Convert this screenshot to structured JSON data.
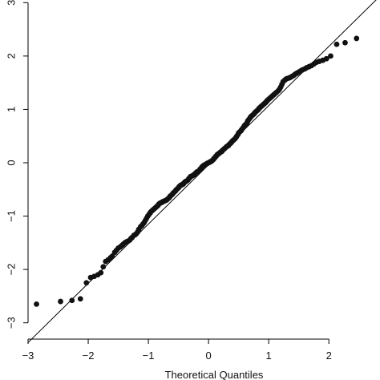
{
  "chart_data": {
    "type": "scatter",
    "title": "",
    "xlabel": "Theoretical Quantiles",
    "ylabel": "",
    "xlim": [
      -3.0,
      2.85
    ],
    "ylim": [
      -3.05,
      3.05
    ],
    "xticks": [
      -3,
      -2,
      -1,
      0,
      1,
      2
    ],
    "yticks": [
      -3,
      -2,
      -1,
      0,
      1,
      2,
      3
    ],
    "xtick_labels": [
      "−3",
      "−2",
      "−1",
      "0",
      "1",
      "2"
    ],
    "ytick_labels": [
      "−3",
      "−2",
      "−1",
      "0",
      "1",
      "2",
      "3"
    ],
    "reference_line": {
      "intercept": -0.04,
      "slope": 1.11
    },
    "series": [
      {
        "x": [
          -2.86,
          -2.46,
          -2.27,
          -2.13,
          -2.03,
          -1.96,
          -1.9,
          -1.84,
          -1.79,
          -1.75,
          -1.71,
          -1.67,
          -1.63,
          -1.6,
          -1.56,
          -1.53,
          -1.5,
          -1.47,
          -1.44,
          -1.42,
          -1.39,
          -1.36,
          -1.34,
          -1.31,
          -1.29,
          -1.27,
          -1.24,
          -1.22,
          -1.2,
          -1.18,
          -1.16,
          -1.13,
          -1.11,
          -1.09,
          -1.07,
          -1.05,
          -1.03,
          -1.01,
          -0.99,
          -0.97,
          -0.96,
          -0.94,
          -0.92,
          -0.9,
          -0.88,
          -0.86,
          -0.84,
          -0.83,
          -0.81,
          -0.79,
          -0.77,
          -0.76,
          -0.74,
          -0.72,
          -0.7,
          -0.69,
          -0.67,
          -0.65,
          -0.64,
          -0.62,
          -0.6,
          -0.59,
          -0.57,
          -0.55,
          -0.54,
          -0.52,
          -0.5,
          -0.49,
          -0.47,
          -0.46,
          -0.44,
          -0.42,
          -0.41,
          -0.39,
          -0.38,
          -0.36,
          -0.34,
          -0.33,
          -0.31,
          -0.3,
          -0.28,
          -0.26,
          -0.25,
          -0.23,
          -0.22,
          -0.2,
          -0.19,
          -0.17,
          -0.15,
          -0.14,
          -0.12,
          -0.11,
          -0.09,
          -0.08,
          -0.06,
          -0.05,
          -0.03,
          -0.02,
          0.0,
          0.02,
          0.03,
          0.05,
          0.06,
          0.08,
          0.09,
          0.11,
          0.12,
          0.14,
          0.15,
          0.17,
          0.19,
          0.2,
          0.22,
          0.23,
          0.25,
          0.26,
          0.28,
          0.3,
          0.31,
          0.33,
          0.34,
          0.36,
          0.38,
          0.39,
          0.41,
          0.42,
          0.44,
          0.46,
          0.47,
          0.49,
          0.5,
          0.52,
          0.54,
          0.55,
          0.57,
          0.59,
          0.6,
          0.62,
          0.64,
          0.65,
          0.67,
          0.69,
          0.7,
          0.72,
          0.74,
          0.76,
          0.77,
          0.79,
          0.81,
          0.83,
          0.84,
          0.86,
          0.88,
          0.9,
          0.92,
          0.94,
          0.96,
          0.97,
          0.99,
          1.01,
          1.03,
          1.05,
          1.07,
          1.09,
          1.11,
          1.13,
          1.16,
          1.18,
          1.2,
          1.22,
          1.24,
          1.27,
          1.29,
          1.31,
          1.34,
          1.36,
          1.39,
          1.42,
          1.44,
          1.47,
          1.5,
          1.53,
          1.56,
          1.6,
          1.63,
          1.67,
          1.71,
          1.75,
          1.79,
          1.84,
          1.9,
          1.96,
          2.03,
          2.13,
          2.27,
          2.46
        ],
        "y": [
          -2.65,
          -2.6,
          -2.58,
          -2.55,
          -2.25,
          -2.15,
          -2.13,
          -2.1,
          -2.06,
          -1.95,
          -1.85,
          -1.82,
          -1.78,
          -1.75,
          -1.68,
          -1.64,
          -1.6,
          -1.58,
          -1.55,
          -1.53,
          -1.5,
          -1.48,
          -1.47,
          -1.45,
          -1.42,
          -1.4,
          -1.36,
          -1.35,
          -1.33,
          -1.3,
          -1.25,
          -1.2,
          -1.18,
          -1.15,
          -1.12,
          -1.08,
          -1.04,
          -1.0,
          -0.97,
          -0.94,
          -0.92,
          -0.9,
          -0.88,
          -0.86,
          -0.84,
          -0.82,
          -0.8,
          -0.78,
          -0.76,
          -0.75,
          -0.74,
          -0.73,
          -0.72,
          -0.71,
          -0.7,
          -0.69,
          -0.67,
          -0.65,
          -0.63,
          -0.61,
          -0.59,
          -0.57,
          -0.55,
          -0.53,
          -0.51,
          -0.49,
          -0.47,
          -0.45,
          -0.43,
          -0.42,
          -0.41,
          -0.4,
          -0.38,
          -0.36,
          -0.35,
          -0.34,
          -0.32,
          -0.3,
          -0.28,
          -0.26,
          -0.25,
          -0.24,
          -0.23,
          -0.22,
          -0.2,
          -0.18,
          -0.17,
          -0.16,
          -0.14,
          -0.12,
          -0.1,
          -0.08,
          -0.06,
          -0.05,
          -0.04,
          -0.03,
          -0.02,
          -0.01,
          0.0,
          0.01,
          0.02,
          0.03,
          0.04,
          0.06,
          0.08,
          0.1,
          0.12,
          0.14,
          0.16,
          0.17,
          0.19,
          0.2,
          0.21,
          0.23,
          0.25,
          0.26,
          0.28,
          0.3,
          0.31,
          0.32,
          0.34,
          0.36,
          0.38,
          0.4,
          0.42,
          0.43,
          0.45,
          0.48,
          0.5,
          0.53,
          0.56,
          0.58,
          0.6,
          0.62,
          0.65,
          0.68,
          0.7,
          0.72,
          0.75,
          0.78,
          0.81,
          0.84,
          0.86,
          0.88,
          0.9,
          0.92,
          0.94,
          0.96,
          0.98,
          1.0,
          1.02,
          1.04,
          1.06,
          1.08,
          1.1,
          1.12,
          1.14,
          1.16,
          1.18,
          1.2,
          1.22,
          1.24,
          1.26,
          1.28,
          1.3,
          1.32,
          1.35,
          1.38,
          1.42,
          1.47,
          1.52,
          1.55,
          1.57,
          1.58,
          1.59,
          1.6,
          1.62,
          1.64,
          1.66,
          1.68,
          1.7,
          1.72,
          1.74,
          1.76,
          1.78,
          1.8,
          1.82,
          1.85,
          1.88,
          1.9,
          1.92,
          1.95,
          2.0,
          2.22,
          2.25,
          2.33
        ]
      }
    ]
  }
}
